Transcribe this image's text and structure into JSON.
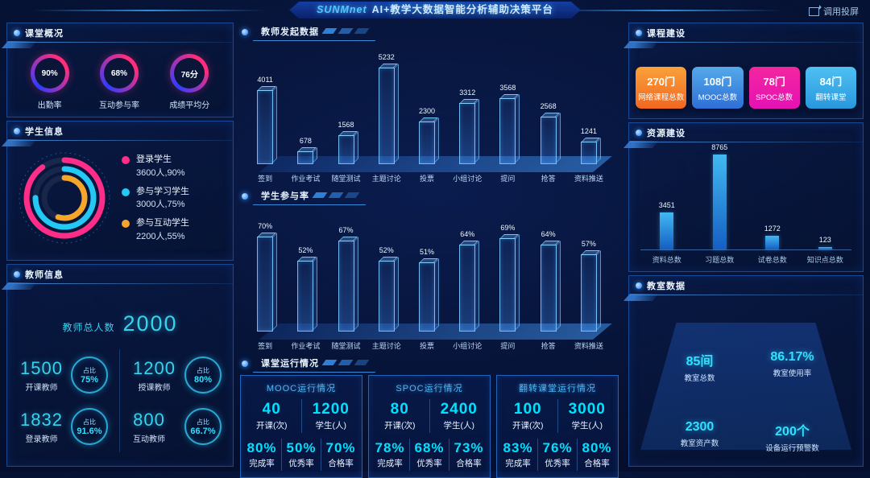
{
  "header": {
    "logo": "SUNMnet",
    "title": "AI+教学大数据智能分析辅助决策平台",
    "cast_label": "调用投屏"
  },
  "left": {
    "class_overview": {
      "title": "课堂概况",
      "metrics": [
        {
          "value": "90%",
          "label": "出勤率"
        },
        {
          "value": "68%",
          "label": "互动参与率"
        },
        {
          "value": "76分",
          "label": "成绩平均分"
        }
      ]
    },
    "students": {
      "title": "学生信息",
      "legend": [
        {
          "label": "登录学生",
          "value": "3600人,90%",
          "pct": 90,
          "color": "#ff2d87"
        },
        {
          "label": "参与学习学生",
          "value": "3000人,75%",
          "pct": 75,
          "color": "#24c8f5"
        },
        {
          "label": "参与互动学生",
          "value": "2200人,55%",
          "pct": 55,
          "color": "#f7a62c"
        }
      ]
    },
    "teachers": {
      "title": "教师信息",
      "total_label": "教师总人数",
      "total_value": "2000",
      "items": [
        {
          "value": "1500",
          "label": "开课教师",
          "ratio_label": "占比",
          "ratio": "75%"
        },
        {
          "value": "1200",
          "label": "授课教师",
          "ratio_label": "占比",
          "ratio": "80%"
        },
        {
          "value": "1832",
          "label": "登录教师",
          "ratio_label": "占比",
          "ratio": "91.6%"
        },
        {
          "value": "800",
          "label": "互动教师",
          "ratio_label": "占比",
          "ratio": "66.7%"
        }
      ]
    }
  },
  "middle": {
    "running": {
      "title": "课堂运行情况",
      "cards": [
        {
          "title": "MOOC运行情况",
          "top": [
            {
              "value": "40",
              "label": "开课(次)"
            },
            {
              "value": "1200",
              "label": "学生(人)"
            }
          ],
          "bottom": [
            {
              "value": "80%",
              "label": "完成率"
            },
            {
              "value": "50%",
              "label": "优秀率"
            },
            {
              "value": "70%",
              "label": "合格率"
            }
          ]
        },
        {
          "title": "SPOC运行情况",
          "top": [
            {
              "value": "80",
              "label": "开课(次)"
            },
            {
              "value": "2400",
              "label": "学生(人)"
            }
          ],
          "bottom": [
            {
              "value": "78%",
              "label": "完成率"
            },
            {
              "value": "68%",
              "label": "优秀率"
            },
            {
              "value": "73%",
              "label": "合格率"
            }
          ]
        },
        {
          "title": "翻转课堂运行情况",
          "top": [
            {
              "value": "100",
              "label": "开课(次)"
            },
            {
              "value": "3000",
              "label": "学生(人)"
            }
          ],
          "bottom": [
            {
              "value": "83%",
              "label": "完成率"
            },
            {
              "value": "76%",
              "label": "优秀率"
            },
            {
              "value": "80%",
              "label": "合格率"
            }
          ]
        }
      ]
    }
  },
  "right": {
    "course": {
      "title": "课程建设",
      "badges": [
        {
          "value": "270门",
          "label": "网络课程总数",
          "color1": "#f9a13b",
          "color2": "#f1671f"
        },
        {
          "value": "108门",
          "label": "MOOC总数",
          "color1": "#55a9ea",
          "color2": "#2e6fd6"
        },
        {
          "value": "78门",
          "label": "SPOC总数",
          "color1": "#f3269e",
          "color2": "#e512b4"
        },
        {
          "value": "84门",
          "label": "翻转课堂",
          "color1": "#4fc0f2",
          "color2": "#2898dd"
        }
      ]
    },
    "classroom": {
      "title": "教室数据",
      "stats": [
        {
          "value": "85间",
          "label": "教室总数"
        },
        {
          "value": "86.17%",
          "label": "教室使用率"
        },
        {
          "value": "2300",
          "label": "教室资产数"
        },
        {
          "value": "200个",
          "label": "设备运行预警数"
        }
      ]
    }
  },
  "chart_data": [
    {
      "type": "bar",
      "title": "教师发起数据",
      "categories": [
        "签到",
        "作业考试",
        "随堂测试",
        "主题讨论",
        "投票",
        "小组讨论",
        "提问",
        "抢答",
        "资料推送"
      ],
      "values": [
        4011,
        678,
        1568,
        5232,
        2300,
        3312,
        3568,
        2568,
        1241
      ],
      "unit": "",
      "ylim": [
        0,
        5500
      ],
      "style": "3d-wireframe",
      "grid": false,
      "legend_position": "none"
    },
    {
      "type": "bar",
      "title": "学生参与率",
      "categories": [
        "签到",
        "作业考试",
        "随堂测试",
        "主题讨论",
        "投票",
        "小组讨论",
        "提问",
        "抢答",
        "资料推送"
      ],
      "values": [
        70,
        52,
        67,
        52,
        51,
        64,
        69,
        64,
        57
      ],
      "unit": "%",
      "ylim": [
        0,
        100
      ],
      "style": "3d-wireframe",
      "grid": false,
      "legend_position": "none"
    },
    {
      "type": "bar",
      "title": "资源建设",
      "categories": [
        "资料总数",
        "习题总数",
        "试卷总数",
        "知识点总数"
      ],
      "values": [
        3451,
        8765,
        1272,
        123
      ],
      "unit": "",
      "ylim": [
        0,
        9000
      ],
      "style": "solid",
      "grid": false,
      "legend_position": "none"
    },
    {
      "type": "pie",
      "title": "学生信息",
      "categories": [
        "登录学生",
        "参与学习学生",
        "参与互动学生"
      ],
      "values": [
        3600,
        3000,
        2200
      ],
      "percents": [
        90,
        75,
        55
      ],
      "colors": [
        "#ff2d87",
        "#24c8f5",
        "#f7a62c"
      ],
      "legend_position": "right"
    }
  ]
}
